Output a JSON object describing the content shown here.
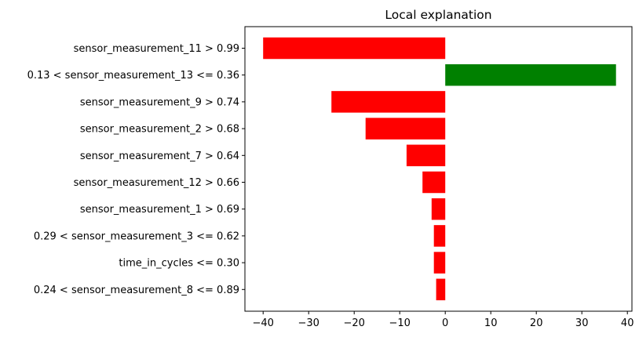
{
  "chart_data": {
    "type": "bar",
    "orientation": "horizontal",
    "title": "Local explanation",
    "xlabel": "",
    "ylabel": "",
    "xlim": [
      -44,
      41
    ],
    "grid": false,
    "categories": [
      "sensor_measurement_11 > 0.99",
      "0.13 < sensor_measurement_13 <= 0.36",
      "sensor_measurement_9 > 0.74",
      "sensor_measurement_2 > 0.68",
      "sensor_measurement_7 > 0.64",
      "sensor_measurement_12 > 0.66",
      "sensor_measurement_1 > 0.69",
      "0.29 < sensor_measurement_3 <= 0.62",
      "time_in_cycles <= 0.30",
      "0.24 < sensor_measurement_8 <= 0.89"
    ],
    "values": [
      -40.0,
      37.5,
      -25.0,
      -17.5,
      -8.5,
      -5.0,
      -3.0,
      -2.5,
      -2.5,
      -2.0
    ],
    "xticks": [
      -40,
      -30,
      -20,
      -10,
      0,
      10,
      20,
      30,
      40
    ],
    "xtick_labels": [
      "−40",
      "−30",
      "−20",
      "−10",
      "0",
      "10",
      "20",
      "30",
      "40"
    ],
    "colors": {
      "negative": "#ff0000",
      "positive": "#008000",
      "axis": "#000000"
    }
  }
}
